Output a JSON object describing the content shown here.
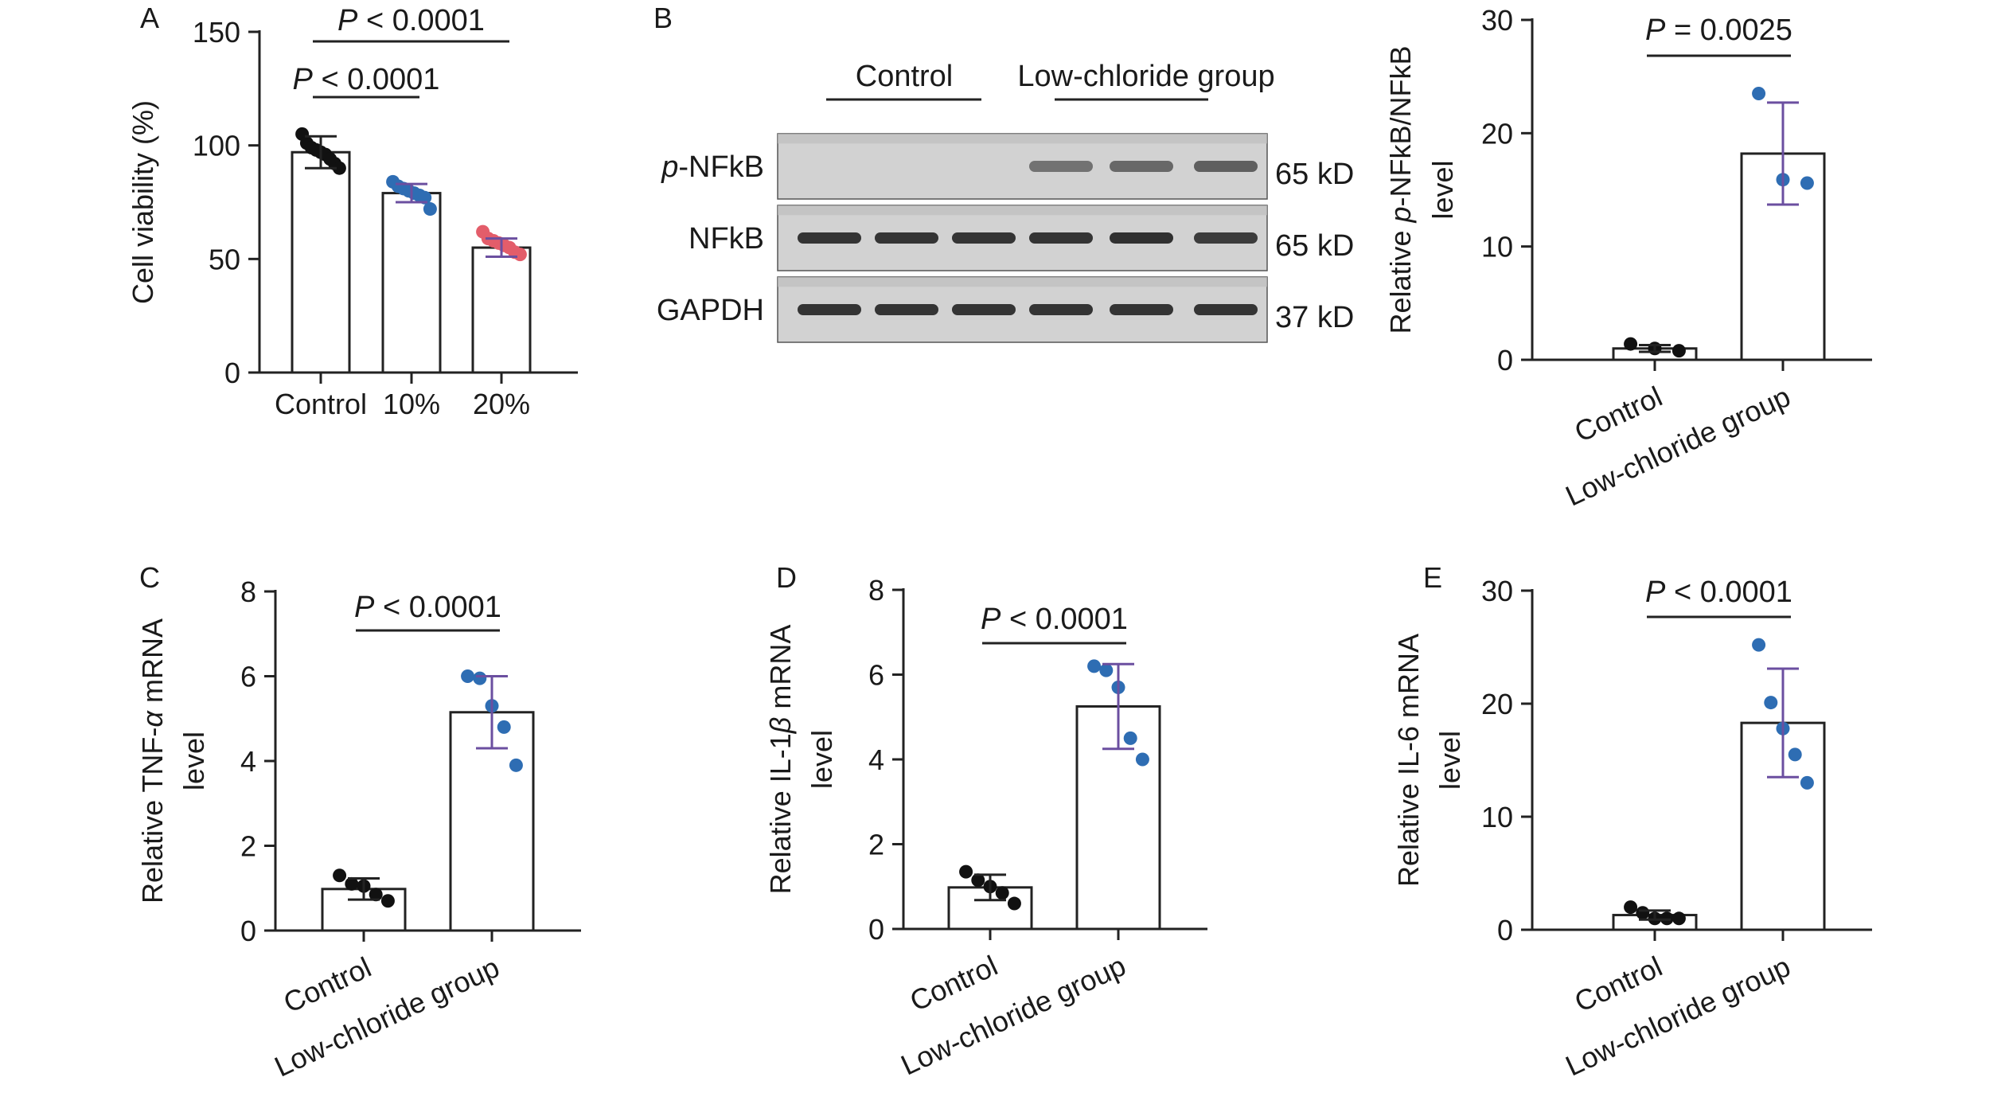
{
  "chart_data": [
    {
      "panel": "A",
      "type": "bar",
      "categories": [
        "Control",
        "10%",
        "20%"
      ],
      "values": [
        97,
        79,
        55
      ],
      "sd": [
        7,
        4,
        4
      ],
      "points": [
        [
          105,
          101,
          99,
          98,
          97,
          96,
          94,
          92,
          90
        ],
        [
          84,
          82,
          81,
          80,
          79,
          78,
          77,
          72
        ],
        [
          62,
          59,
          58,
          57,
          56,
          55,
          53,
          52
        ]
      ],
      "point_colors": [
        "#111111",
        "#2e6db3",
        "#e35d6a"
      ],
      "ylabel": "Cell viability (%)",
      "ylim": [
        0,
        150
      ],
      "yticks": [
        "0",
        "50",
        "100",
        "150"
      ],
      "significance": [
        {
          "from": 0,
          "to": 1,
          "p": "< 0.0001"
        },
        {
          "from": 0,
          "to": 2,
          "p": "< 0.0001"
        }
      ]
    },
    {
      "panel": "B",
      "type": "bar",
      "categories": [
        "Control",
        "Low-chloride group"
      ],
      "values": [
        1.0,
        18.2
      ],
      "sd": [
        0.3,
        4.5
      ],
      "points": [
        [
          1.4,
          1.0,
          0.8
        ],
        [
          23.5,
          15.9,
          15.6
        ]
      ],
      "point_colors": [
        "#111111",
        "#2e6db3"
      ],
      "ylabel_parts": [
        "Relative ",
        "p",
        "-NFkB/NFkB"
      ],
      "ylabel2": "level",
      "ylim": [
        0,
        30
      ],
      "yticks": [
        "0",
        "10",
        "20",
        "30"
      ],
      "significance": [
        {
          "from": 0,
          "to": 1,
          "p": "= 0.0025"
        }
      ]
    },
    {
      "panel": "C",
      "type": "bar",
      "categories": [
        "Control",
        "Low-chloride group"
      ],
      "values": [
        0.98,
        5.15
      ],
      "sd": [
        0.25,
        0.85
      ],
      "points": [
        [
          1.3,
          1.1,
          1.05,
          0.85,
          0.7
        ],
        [
          6.0,
          5.95,
          5.3,
          4.8,
          3.9
        ]
      ],
      "point_colors": [
        "#111111",
        "#2e6db3"
      ],
      "ylabel_parts": [
        "Relative TNF-",
        "α",
        " mRNA"
      ],
      "ylabel2": "level",
      "ylim": [
        0,
        8
      ],
      "yticks": [
        "0",
        "2",
        "4",
        "6",
        "8"
      ],
      "significance": [
        {
          "from": 0,
          "to": 1,
          "p": "< 0.0001"
        }
      ]
    },
    {
      "panel": "D",
      "type": "bar",
      "categories": [
        "Control",
        "Low-chloride group"
      ],
      "values": [
        0.98,
        5.25
      ],
      "sd": [
        0.3,
        1.0
      ],
      "points": [
        [
          1.35,
          1.15,
          1.0,
          0.85,
          0.6
        ],
        [
          6.2,
          6.1,
          5.7,
          4.5,
          4.0
        ]
      ],
      "point_colors": [
        "#111111",
        "#2e6db3"
      ],
      "ylabel_parts": [
        "Relative IL-1",
        "β",
        " mRNA"
      ],
      "ylabel2": "level",
      "ylim": [
        0,
        8
      ],
      "yticks": [
        "0",
        "2",
        "4",
        "6",
        "8"
      ],
      "significance": [
        {
          "from": 0,
          "to": 1,
          "p": "< 0.0001"
        }
      ]
    },
    {
      "panel": "E",
      "type": "bar",
      "categories": [
        "Control",
        "Low-chloride group"
      ],
      "values": [
        1.3,
        18.3
      ],
      "sd": [
        0.4,
        4.8
      ],
      "points": [
        [
          2.0,
          1.5,
          1.0,
          1.0,
          1.0
        ],
        [
          25.2,
          20.1,
          17.8,
          15.5,
          13.0
        ]
      ],
      "point_colors": [
        "#111111",
        "#2e6db3"
      ],
      "ylabel_parts": [
        "Relative IL-6 mRNA"
      ],
      "ylabel2": "level",
      "ylim": [
        0,
        30
      ],
      "yticks": [
        "0",
        "10",
        "20",
        "30"
      ],
      "significance": [
        {
          "from": 0,
          "to": 1,
          "p": "< 0.0001"
        }
      ]
    }
  ],
  "blot": {
    "panel": "B",
    "group_control": "Control",
    "group_low": "Low-chloride group",
    "rows": [
      {
        "name_parts": [
          "p",
          "-NFkB"
        ],
        "size": "65 kD",
        "intensity": [
          0,
          0,
          0,
          0.55,
          0.6,
          0.65
        ]
      },
      {
        "name_parts": [
          "NFkB"
        ],
        "size": "65 kD",
        "intensity": [
          0.9,
          0.9,
          0.9,
          0.9,
          0.92,
          0.85
        ]
      },
      {
        "name_parts": [
          "GAPDH"
        ],
        "size": "37 kD",
        "intensity": [
          0.9,
          0.9,
          0.9,
          0.9,
          0.9,
          0.9
        ]
      }
    ]
  },
  "significance_label": "P"
}
